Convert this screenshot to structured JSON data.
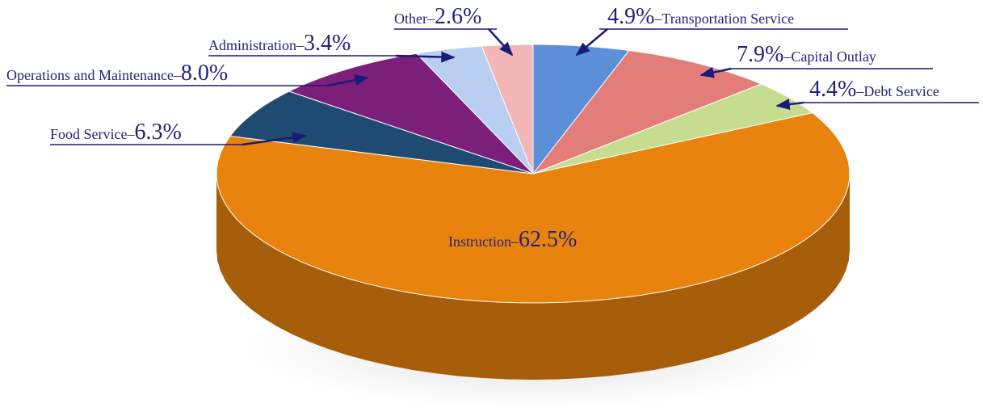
{
  "chart_data": {
    "type": "pie",
    "categories": [
      "Transportation Service",
      "Capital Outlay",
      "Debt Service",
      "Instruction",
      "Food Service",
      "Operations and Maintenance",
      "Administration",
      "Other"
    ],
    "values": [
      4.9,
      7.9,
      4.4,
      62.5,
      6.3,
      8.0,
      3.4,
      2.6
    ],
    "value_labels": [
      "4.9%",
      "7.9%",
      "4.4%",
      "62.5%",
      "6.3%",
      "8.0%",
      "3.4%",
      "2.6%"
    ],
    "label_separator": "–",
    "colors": [
      "#5b90d8",
      "#e27d7a",
      "#c6dd90",
      "#e8830e",
      "#1f4b73",
      "#7c1f7b",
      "#b9cef0",
      "#f2b6b6"
    ]
  }
}
